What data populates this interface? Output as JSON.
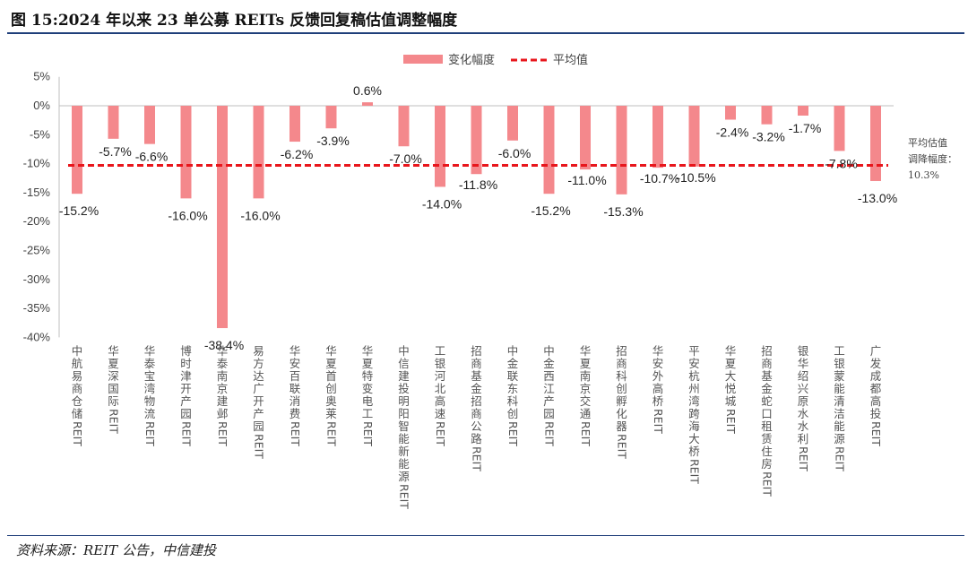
{
  "figure": {
    "title": "图 15:2024 年以来 23 单公募 REITs 反馈回复稿估值调整幅度",
    "source": "资料来源：REIT 公告，中信建投"
  },
  "colors": {
    "bar": "#f4888c",
    "avg_line": "#e8161c",
    "rule": "#1f3f7a"
  },
  "chart_data": {
    "type": "bar",
    "categories": [
      "中航易商仓储REIT",
      "华夏深国际REIT",
      "华泰宝湾物流REIT",
      "博时津开产园REIT",
      "华泰南京建邺REIT",
      "易方达广开产园REIT",
      "华安百联消费REIT",
      "华夏首创奥莱REIT",
      "华夏特变电工REIT",
      "中信建投明阳智能新能源REIT",
      "工银河北高速REIT",
      "招商基金招商公路REIT",
      "中金联东科创REIT",
      "中金西江产园REIT",
      "华夏南京交通REIT",
      "招商科创孵化器REIT",
      "华安外高桥REIT",
      "平安杭州湾跨海大桥REIT",
      "华夏大悦城REIT",
      "招商基金蛇口租赁住房REIT",
      "银华绍兴原水水利REIT",
      "工银蒙能清洁能源REIT",
      "广发成都高投REIT"
    ],
    "series": [
      {
        "name": "变化幅度",
        "values": [
          -15.2,
          -5.7,
          -6.6,
          -16.0,
          -38.4,
          -16.0,
          -6.2,
          -3.9,
          0.6,
          -7.0,
          -14.0,
          -11.8,
          -6.0,
          -15.2,
          -11.0,
          -15.3,
          -10.7,
          -10.5,
          -2.4,
          -3.2,
          -1.7,
          -7.8,
          -13.0
        ]
      },
      {
        "name": "平均值",
        "value": -10.3
      }
    ],
    "data_labels": [
      "-15.2%",
      "-5.7%",
      "-6.6%",
      "-16.0%",
      "-38.4%",
      "-16.0%",
      "-6.2%",
      "-3.9%",
      "0.6%",
      "-7.0%",
      "-14.0%",
      "-11.8%",
      "-6.0%",
      "-15.2%",
      "-11.0%",
      "-15.3%",
      "-10.7%",
      "-10.5%",
      "-2.4%",
      "-3.2%",
      "-1.7%",
      "-7.8%",
      "-13.0%"
    ],
    "yticks": [
      5,
      0,
      -5,
      -10,
      -15,
      -20,
      -25,
      -30,
      -35,
      -40
    ],
    "ytick_labels": [
      "5%",
      "0%",
      "-5%",
      "-10%",
      "-15%",
      "-20%",
      "-25%",
      "-30%",
      "-35%",
      "-40%"
    ],
    "ylim": [
      -40,
      5
    ],
    "legend": [
      "变化幅度",
      "平均值"
    ],
    "legend_position": "top-center",
    "annotation": [
      "平均估值",
      "调降幅度：",
      "10.3%"
    ],
    "grid": false
  }
}
